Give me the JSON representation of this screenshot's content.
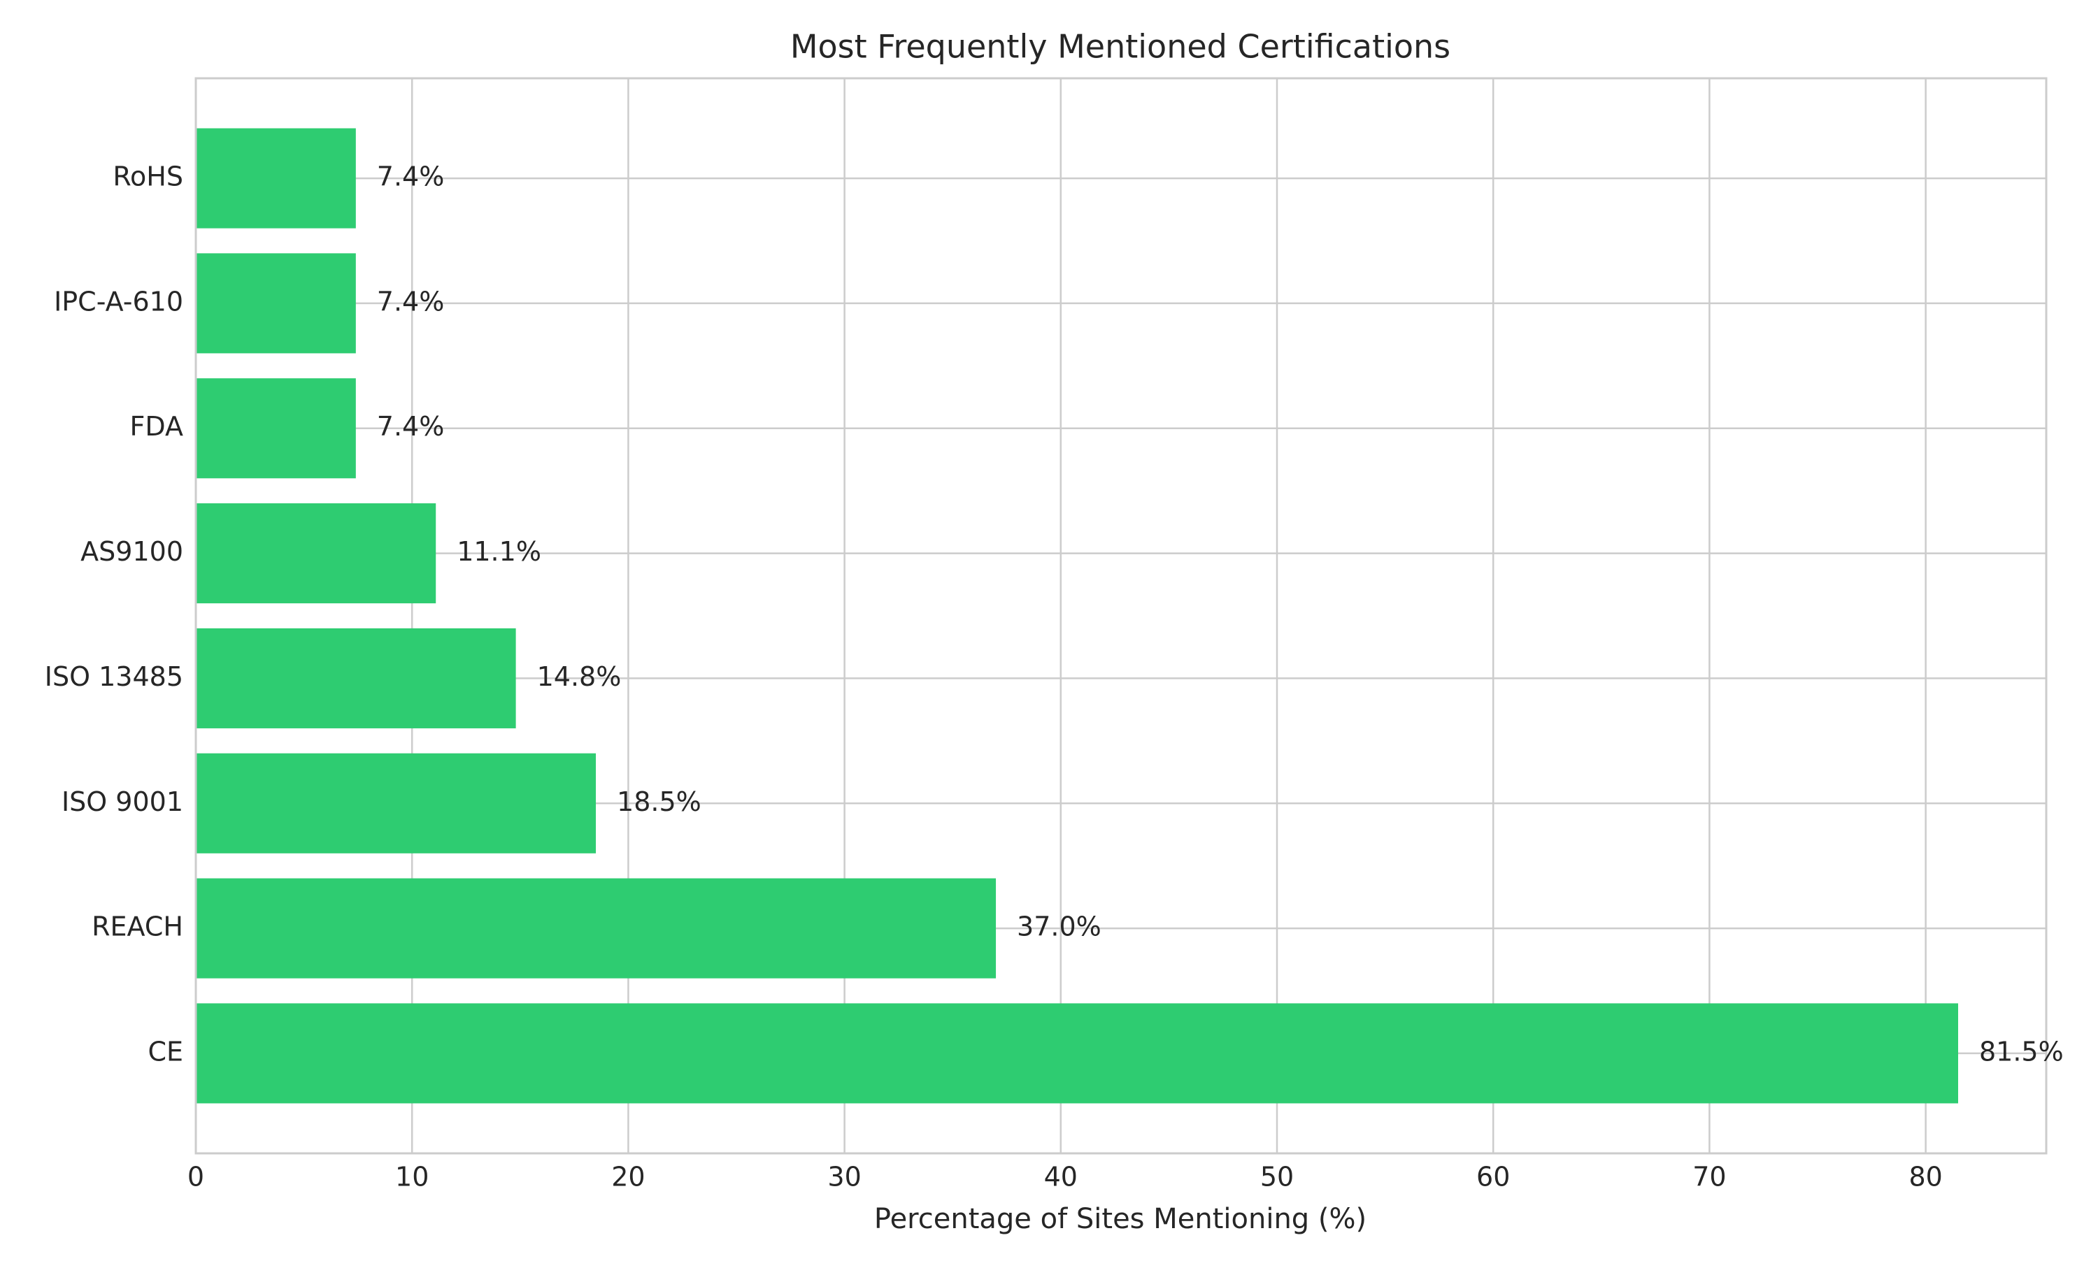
{
  "chart_data": {
    "type": "bar",
    "orientation": "horizontal",
    "title": "Most Frequently Mentioned Certifications",
    "xlabel": "Percentage of Sites Mentioning (%)",
    "ylabel": "",
    "categories": [
      "CE",
      "REACH",
      "ISO 9001",
      "ISO 13485",
      "AS9100",
      "FDA",
      "IPC-A-610",
      "RoHS"
    ],
    "values": [
      81.5,
      37.0,
      18.5,
      14.8,
      11.1,
      7.4,
      7.4,
      7.4
    ],
    "value_labels": [
      "81.5%",
      "37.0%",
      "18.5%",
      "14.8%",
      "11.1%",
      "7.4%",
      "7.4%",
      "7.4%"
    ],
    "xlim": [
      0,
      85.575
    ],
    "xticks": [
      0,
      10,
      20,
      30,
      40,
      50,
      60,
      70,
      80
    ],
    "grid": true,
    "legend": "none",
    "colors": {
      "bar": "#2ecc71",
      "grid": "#cccccc",
      "axes": "#cccccc",
      "text": "#262626"
    }
  }
}
